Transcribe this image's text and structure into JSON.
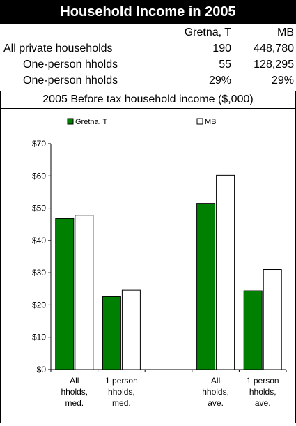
{
  "title": "Household Income in 2005",
  "table": {
    "headers": [
      "",
      "Gretna, T",
      "MB"
    ],
    "rows": [
      {
        "label": "All private households",
        "v1": "190",
        "v2": "448,780",
        "indent": false
      },
      {
        "label": "One-person hholds",
        "v1": "55",
        "v2": "128,295",
        "indent": true
      },
      {
        "label": "One-person hholds",
        "v1": "29%",
        "v2": "29%",
        "indent": true
      }
    ]
  },
  "chart_title": "2005 Before tax household income ($,000)",
  "chart_data": {
    "type": "bar",
    "categories": [
      "All hholds, med.",
      "1 person hholds, med.",
      "",
      "All hholds, ave.",
      "1 person hholds, ave."
    ],
    "category_lines": [
      [
        "All",
        "hholds,",
        "med."
      ],
      [
        "1 person",
        "hholds,",
        "med."
      ],
      [],
      [
        "All",
        "hholds,",
        "ave."
      ],
      [
        "1 person",
        "hholds,",
        "ave."
      ]
    ],
    "series": [
      {
        "name": "Gretna, T",
        "values": [
          46.8,
          22.6,
          null,
          51.5,
          24.4
        ],
        "color": "#008000"
      },
      {
        "name": "MB",
        "values": [
          47.8,
          24.6,
          null,
          60.2,
          31.0
        ],
        "color": "#ffffff"
      }
    ],
    "ylim": [
      0,
      70
    ],
    "yticks": [
      0,
      10,
      20,
      30,
      40,
      50,
      60,
      70
    ],
    "ytick_labels": [
      "$0",
      "$10",
      "$20",
      "$30",
      "$40",
      "$50",
      "$60",
      "$70"
    ],
    "legend_position": "top",
    "grid": false
  }
}
